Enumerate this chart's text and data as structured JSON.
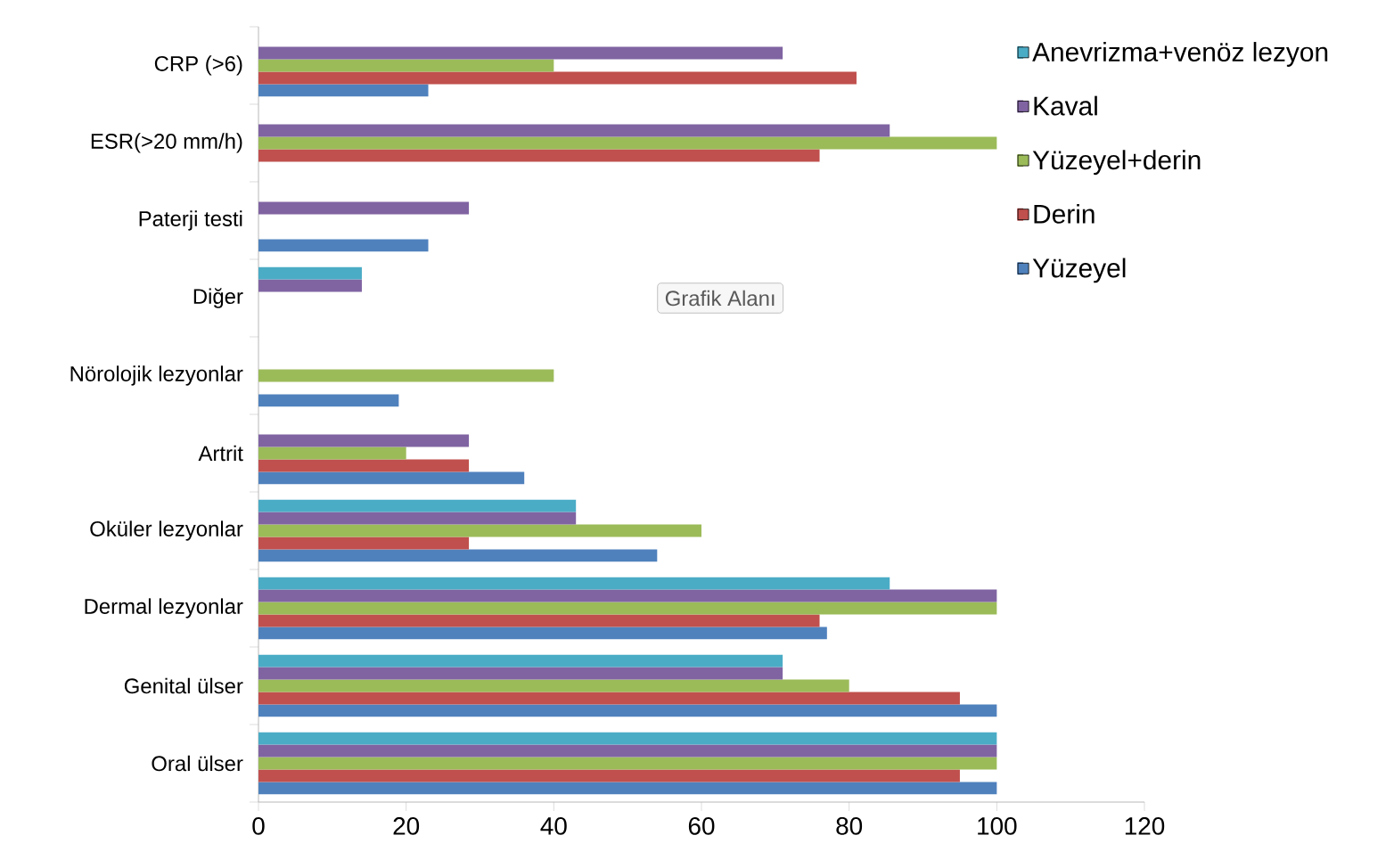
{
  "chart_data": {
    "type": "bar",
    "orientation": "horizontal",
    "categories": [
      "CRP (>6)",
      "ESR(>20 mm/h)",
      "Paterji testi",
      "Diğer",
      "Nörolojik lezyonlar",
      "Artrit",
      "Oküler lezyonlar",
      "Dermal lezyonlar",
      "Genital ülser",
      "Oral ülser"
    ],
    "series": [
      {
        "name": "Yüzeyel",
        "color": "#4f81bd",
        "values": [
          23,
          null,
          23,
          null,
          19,
          36,
          54,
          77,
          100,
          100
        ]
      },
      {
        "name": "Derin",
        "color": "#c0504d",
        "values": [
          81,
          76,
          null,
          null,
          null,
          28.5,
          28.5,
          76,
          95,
          95
        ]
      },
      {
        "name": "Yüzeyel+derin",
        "color": "#9bbb59",
        "values": [
          40,
          100,
          null,
          null,
          40,
          20,
          60,
          100,
          80,
          100
        ]
      },
      {
        "name": "Kaval",
        "color": "#8064a2",
        "values": [
          71,
          85.5,
          28.5,
          14,
          null,
          28.5,
          43,
          100,
          71,
          100
        ]
      },
      {
        "name": "Anevrizma+venöz lezyon",
        "color": "#4bacc6",
        "values": [
          null,
          null,
          null,
          14,
          null,
          null,
          43,
          85.5,
          71,
          100
        ]
      }
    ],
    "xlim": [
      0,
      120
    ],
    "xticks": [
      0,
      20,
      40,
      60,
      80,
      100,
      120
    ],
    "grid": false,
    "legend": "top right",
    "annotations": [
      "Grafik Alanı"
    ]
  }
}
